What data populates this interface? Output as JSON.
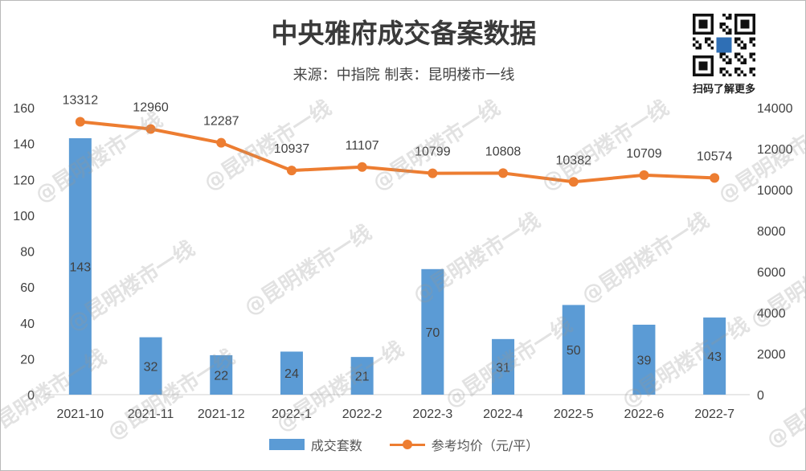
{
  "title": "中央雅府成交备案数据",
  "subtitle": "来源：中指院 制表：昆明楼市一线",
  "qr_caption": "扫码了解更多",
  "watermark_text": "@昆明楼市一线",
  "colors": {
    "bar": "#5b9bd5",
    "line": "#ed7d31",
    "text": "#404040",
    "axis": "#d0d0d0"
  },
  "chart_data": {
    "type": "bar",
    "categories": [
      "2021-10",
      "2021-11",
      "2021-12",
      "2022-1",
      "2022-2",
      "2022-3",
      "2022-4",
      "2022-5",
      "2022-6",
      "2022-7"
    ],
    "series": [
      {
        "name": "成交套数",
        "type": "bar",
        "axis": "left",
        "values": [
          143,
          32,
          22,
          24,
          21,
          70,
          31,
          50,
          39,
          43
        ]
      },
      {
        "name": "参考均价（元/平）",
        "type": "line",
        "axis": "right",
        "values": [
          13312,
          12960,
          12287,
          10937,
          11107,
          10799,
          10808,
          10382,
          10709,
          10574
        ]
      }
    ],
    "y_left": {
      "min": 0,
      "max": 160,
      "ticks": [
        0,
        20,
        40,
        60,
        80,
        100,
        120,
        140,
        160
      ]
    },
    "y_right": {
      "min": 0,
      "max": 14000,
      "ticks": [
        0,
        2000,
        4000,
        6000,
        8000,
        10000,
        12000,
        14000
      ]
    },
    "grid": false,
    "legend_position": "bottom"
  }
}
